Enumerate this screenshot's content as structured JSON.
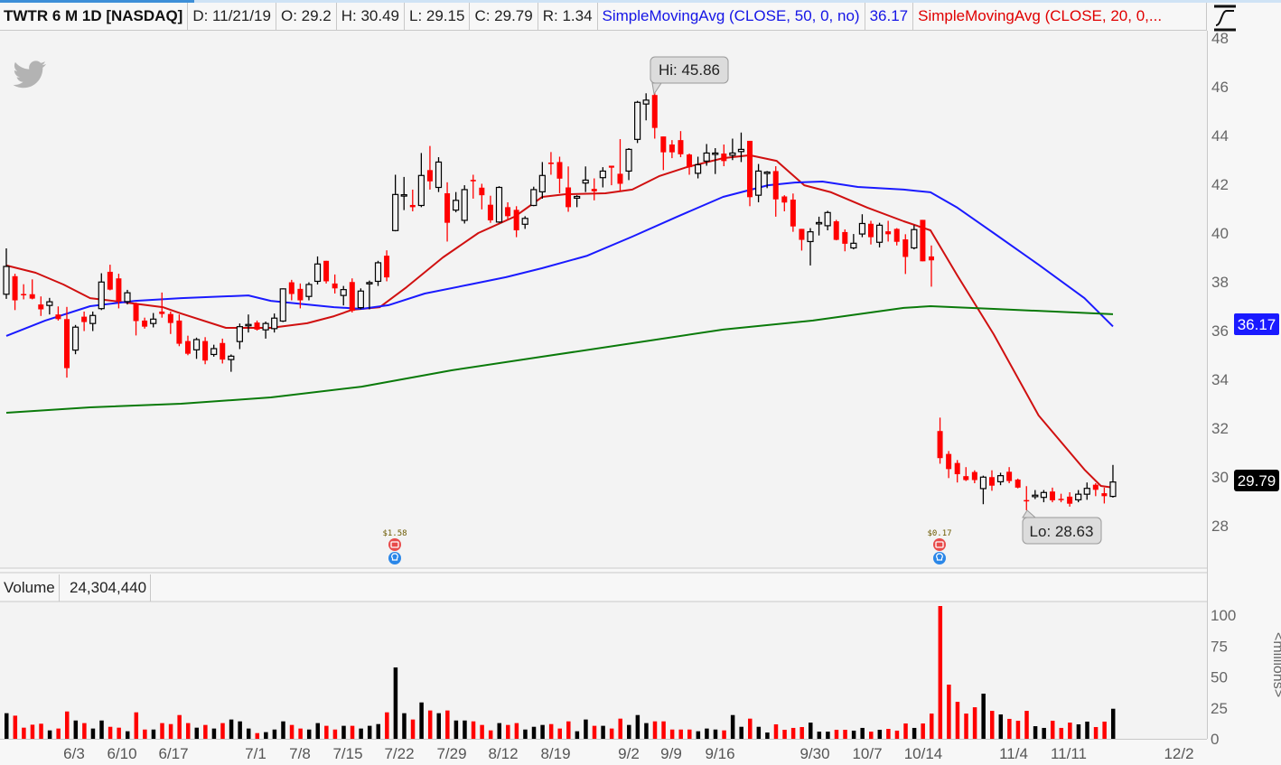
{
  "header": {
    "symbol": "TWTR 6 M 1D [NASDAQ]",
    "date": "D: 11/21/19",
    "open": "O: 29.2",
    "high": "H: 30.49",
    "low": "L: 29.15",
    "close": "C: 29.79",
    "range": "R: 1.34",
    "sma50_label": "SimpleMovingAvg (CLOSE, 50, 0, no)",
    "sma50_value": "36.17",
    "sma20_label": "SimpleMovingAvg (CLOSE, 20, 0,..."
  },
  "volume_pane": {
    "label": "Volume",
    "value": "24,304,440",
    "axis_label": "<millions>"
  },
  "annotations": {
    "high": "Hi: 45.86",
    "low": "Lo: 28.63",
    "dividends": [
      "$1.58",
      "$0.17"
    ]
  },
  "price_labels": {
    "sma50": "36.17",
    "last": "29.79"
  },
  "colors": {
    "up": "#000000",
    "down": "#ff0000",
    "sma20": "#d01010",
    "sma50": "#1a1aff",
    "sma200": "#0a7a0a",
    "background": "#f3f3f3",
    "logo": "#b3b3b3"
  },
  "icons": {
    "logo": "twitter-bird-icon",
    "dividend": "phone-icon",
    "earnings": "lightbulb-icon",
    "scale": "auto-scale-icon"
  },
  "chart_data": {
    "type": "candlestick",
    "symbol": "TWTR",
    "period": "6 M",
    "interval": "1D",
    "ylim": [
      27,
      48.3
    ],
    "y_ticks": [
      "48",
      "46",
      "44",
      "42",
      "40",
      "38",
      "36",
      "34",
      "32",
      "30",
      "28"
    ],
    "x_ticks": [
      "6/3",
      "6/10",
      "6/17",
      "7/1",
      "7/8",
      "7/15",
      "7/22",
      "7/29",
      "8/12",
      "8/19",
      "9/2",
      "9/9",
      "9/16",
      "9/30",
      "10/7",
      "10/14",
      "11/4",
      "11/11",
      "12/2"
    ],
    "volume_ticks": [
      "100",
      "75",
      "50",
      "25",
      "0"
    ],
    "volume_ylim": [
      0,
      110
    ],
    "grid": false,
    "ohlc": [
      [
        37.49,
        39.37,
        37.3,
        38.63
      ],
      [
        38.23,
        38.33,
        36.84,
        37.24
      ],
      [
        37.5,
        37.9,
        37.28,
        37.47
      ],
      [
        37.49,
        38.1,
        37.28,
        37.31
      ],
      [
        37.07,
        37.4,
        36.6,
        36.87
      ],
      [
        37.03,
        37.34,
        36.66,
        37.18
      ],
      [
        36.66,
        36.99,
        36.41,
        36.47
      ],
      [
        36.47,
        36.97,
        34.07,
        34.46
      ],
      [
        35.2,
        36.23,
        35.03,
        36.14
      ],
      [
        36.57,
        36.78,
        35.98,
        36.35
      ],
      [
        36.29,
        36.78,
        35.98,
        36.62
      ],
      [
        36.9,
        38.35,
        36.84,
        37.99
      ],
      [
        38.41,
        38.7,
        37.65,
        37.68
      ],
      [
        38.14,
        38.33,
        36.91,
        37.21
      ],
      [
        37.19,
        37.67,
        37.07,
        37.55
      ],
      [
        37.09,
        37.15,
        35.8,
        36.39
      ],
      [
        36.41,
        36.53,
        36.08,
        36.16
      ],
      [
        36.29,
        36.72,
        36.13,
        36.47
      ],
      [
        36.78,
        37.56,
        36.53,
        36.68
      ],
      [
        36.68,
        36.78,
        35.86,
        36.31
      ],
      [
        36.41,
        36.66,
        35.36,
        35.46
      ],
      [
        35.57,
        35.79,
        34.99,
        35.05
      ],
      [
        35.21,
        35.71,
        34.84,
        35.63
      ],
      [
        35.57,
        35.73,
        34.62,
        34.77
      ],
      [
        35.02,
        35.42,
        34.93,
        35.26
      ],
      [
        35.49,
        35.67,
        34.65,
        34.81
      ],
      [
        34.81,
        35.02,
        34.31,
        34.95
      ],
      [
        35.55,
        36.29,
        35.24,
        36.16
      ],
      [
        36.23,
        36.66,
        35.92,
        36.25
      ],
      [
        36.33,
        36.41,
        36.0,
        36.04
      ],
      [
        36.03,
        36.37,
        35.67,
        36.29
      ],
      [
        36.08,
        36.7,
        35.92,
        36.51
      ],
      [
        36.39,
        37.73,
        36.35,
        37.71
      ],
      [
        37.98,
        38.08,
        37.24,
        37.5
      ],
      [
        37.71,
        37.93,
        36.91,
        37.24
      ],
      [
        37.4,
        37.98,
        37.24,
        37.89
      ],
      [
        38.02,
        39.04,
        37.89,
        38.73
      ],
      [
        38.86,
        38.86,
        37.93,
        38.02
      ],
      [
        37.93,
        38.3,
        37.52,
        37.73
      ],
      [
        37.44,
        37.83,
        37.03,
        37.68
      ],
      [
        37.99,
        38.14,
        36.74,
        36.81
      ],
      [
        36.94,
        37.73,
        36.87,
        37.62
      ],
      [
        37.95,
        38.05,
        36.87,
        37.97
      ],
      [
        38.02,
        38.86,
        37.83,
        38.78
      ],
      [
        39.07,
        39.29,
        38.02,
        38.18
      ],
      [
        40.1,
        42.39,
        40.07,
        41.58
      ],
      [
        41.55,
        42.3,
        40.94,
        41.57
      ],
      [
        41.15,
        41.78,
        40.89,
        41.06
      ],
      [
        41.13,
        43.28,
        41.06,
        42.36
      ],
      [
        42.58,
        43.57,
        41.78,
        42.12
      ],
      [
        41.87,
        43.11,
        41.68,
        42.91
      ],
      [
        41.63,
        42.08,
        39.65,
        40.42
      ],
      [
        40.94,
        41.68,
        40.85,
        41.34
      ],
      [
        40.52,
        41.96,
        40.39,
        41.78
      ],
      [
        42.18,
        42.39,
        41.41,
        42.12
      ],
      [
        41.86,
        42.02,
        40.97,
        41.55
      ],
      [
        41.16,
        41.53,
        40.42,
        40.52
      ],
      [
        40.45,
        41.92,
        40.42,
        41.87
      ],
      [
        41.06,
        41.26,
        40.52,
        40.69
      ],
      [
        40.95,
        41.1,
        39.83,
        40.11
      ],
      [
        40.36,
        40.69,
        40.17,
        40.6
      ],
      [
        41.13,
        41.9,
        41.1,
        41.78
      ],
      [
        41.69,
        42.91,
        41.41,
        42.36
      ],
      [
        42.89,
        43.32,
        42.39,
        42.83
      ],
      [
        42.91,
        43.13,
        41.63,
        42.23
      ],
      [
        41.87,
        42.73,
        40.87,
        41.06
      ],
      [
        41.43,
        41.55,
        41.06,
        41.5
      ],
      [
        42.05,
        42.73,
        41.68,
        42.17
      ],
      [
        41.81,
        42.24,
        41.34,
        41.71
      ],
      [
        42.27,
        42.7,
        41.87,
        42.54
      ],
      [
        42.76,
        42.76,
        41.96,
        42.68
      ],
      [
        42.43,
        43.85,
        41.71,
        42.02
      ],
      [
        42.54,
        43.48,
        42.17,
        43.43
      ],
      [
        43.84,
        45.42,
        43.69,
        45.36
      ],
      [
        45.29,
        45.73,
        44.62,
        45.45
      ],
      [
        45.66,
        45.86,
        43.87,
        44.31
      ],
      [
        43.96,
        43.96,
        42.58,
        43.31
      ],
      [
        43.63,
        43.81,
        43.07,
        43.31
      ],
      [
        43.81,
        44.18,
        43.11,
        43.23
      ],
      [
        43.22,
        43.26,
        42.39,
        42.7
      ],
      [
        42.45,
        43.13,
        42.24,
        42.8
      ],
      [
        42.95,
        43.65,
        42.76,
        43.28
      ],
      [
        43.23,
        43.48,
        42.42,
        43.28
      ],
      [
        43.26,
        43.63,
        42.74,
        42.95
      ],
      [
        43.19,
        43.87,
        42.99,
        43.28
      ],
      [
        43.34,
        44.12,
        42.91,
        43.43
      ],
      [
        43.78,
        43.78,
        41.1,
        41.47
      ],
      [
        41.55,
        42.83,
        41.26,
        42.54
      ],
      [
        42.44,
        42.54,
        41.84,
        42.5
      ],
      [
        42.54,
        42.74,
        40.67,
        41.38
      ],
      [
        41.5,
        41.55,
        40.89,
        41.25
      ],
      [
        41.37,
        41.62,
        40.05,
        40.27
      ],
      [
        40.17,
        40.17,
        39.28,
        39.72
      ],
      [
        39.65,
        40.2,
        38.67,
        40.05
      ],
      [
        40.4,
        40.67,
        39.9,
        40.43
      ],
      [
        40.3,
        40.91,
        40.11,
        40.84
      ],
      [
        40.48,
        40.54,
        39.7,
        39.72
      ],
      [
        40.04,
        40.15,
        39.25,
        39.56
      ],
      [
        39.39,
        39.96,
        39.33,
        39.58
      ],
      [
        39.96,
        40.77,
        39.83,
        40.39
      ],
      [
        40.38,
        40.5,
        39.53,
        39.83
      ],
      [
        39.62,
        40.42,
        39.41,
        40.32
      ],
      [
        40.07,
        40.5,
        39.65,
        39.95
      ],
      [
        40.17,
        40.2,
        39.49,
        39.64
      ],
      [
        39.74,
        39.95,
        38.32,
        39.02
      ],
      [
        39.39,
        40.32,
        39.33,
        40.14
      ],
      [
        40.54,
        40.54,
        38.84,
        38.84
      ],
      [
        39.04,
        39.49,
        37.8,
        38.88
      ],
      [
        31.88,
        32.43,
        30.54,
        30.77
      ],
      [
        30.94,
        31.06,
        29.95,
        30.32
      ],
      [
        30.57,
        30.69,
        29.77,
        30.11
      ],
      [
        30.03,
        30.4,
        29.83,
        29.87
      ],
      [
        30.2,
        30.27,
        29.74,
        29.87
      ],
      [
        29.52,
        30.05,
        28.88,
        29.99
      ],
      [
        29.99,
        30.27,
        29.43,
        29.64
      ],
      [
        29.8,
        30.17,
        29.66,
        30.05
      ],
      [
        30.21,
        30.4,
        29.74,
        29.83
      ],
      [
        29.89,
        29.93,
        29.53,
        29.56
      ],
      [
        29.05,
        29.62,
        28.63,
        29.03
      ],
      [
        29.19,
        29.46,
        29.09,
        29.25
      ],
      [
        29.16,
        29.46,
        28.96,
        29.36
      ],
      [
        29.4,
        29.56,
        28.96,
        29.04
      ],
      [
        29.1,
        29.31,
        28.96,
        29.08
      ],
      [
        29.19,
        29.37,
        28.78,
        28.9
      ],
      [
        29.06,
        29.46,
        28.96,
        29.29
      ],
      [
        29.29,
        29.77,
        29.06,
        29.53
      ],
      [
        29.68,
        29.74,
        29.21,
        29.47
      ],
      [
        29.33,
        29.56,
        28.91,
        29.21
      ],
      [
        29.2,
        30.49,
        29.15,
        29.79
      ]
    ],
    "volume_millions": [
      20.7,
      18.7,
      9.0,
      11.4,
      12.2,
      6.8,
      8.3,
      22.1,
      14.8,
      12.7,
      8.3,
      14.8,
      9.7,
      9.0,
      6.1,
      21.4,
      7.5,
      7.5,
      12.7,
      11.9,
      19.2,
      12.7,
      9.0,
      11.2,
      8.3,
      12.7,
      15.6,
      14.1,
      8.3,
      4.6,
      5.4,
      7.5,
      14.1,
      11.2,
      8.3,
      7.5,
      12.7,
      10.5,
      7.5,
      10.5,
      10.5,
      8.3,
      10.5,
      11.9,
      21.4,
      57.7,
      20.7,
      15.6,
      29.4,
      22.9,
      20.7,
      22.9,
      14.8,
      14.8,
      14.1,
      11.2,
      6.8,
      12.7,
      11.2,
      12.7,
      7.5,
      9.7,
      11.2,
      11.9,
      8.3,
      14.1,
      6.1,
      15.6,
      10.5,
      10.5,
      8.3,
      16.3,
      11.2,
      19.2,
      12.7,
      14.1,
      14.1,
      7.5,
      7.5,
      7.5,
      6.1,
      8.3,
      7.5,
      6.8,
      19.2,
      9.7,
      16.3,
      9.7,
      5.1,
      11.7,
      7.3,
      8.8,
      9.5,
      13.1,
      5.8,
      5.8,
      7.3,
      7.3,
      6.6,
      8.8,
      5.8,
      7.3,
      8.0,
      6.6,
      12.4,
      8.8,
      12.4,
      20.4,
      107.3,
      43.8,
      29.9,
      20.4,
      25.5,
      36.5,
      22.6,
      19.7,
      16.1,
      14.6,
      22.6,
      10.2,
      8.8,
      14.6,
      8.8,
      13.1,
      11.7,
      13.9,
      9.5,
      13.9,
      24.3
    ],
    "series": [
      {
        "name": "SimpleMovingAvg (CLOSE, 20, 0,...",
        "color": "#d01010",
        "points": [
          [
            1,
            38.67
          ],
          [
            4.4,
            38.37
          ],
          [
            7.6,
            37.89
          ],
          [
            10.7,
            37.33
          ],
          [
            14.9,
            37.15
          ],
          [
            19.1,
            36.96
          ],
          [
            21.2,
            36.7
          ],
          [
            26.4,
            36.11
          ],
          [
            31.6,
            36.11
          ],
          [
            35.8,
            36.3
          ],
          [
            38.9,
            36.59
          ],
          [
            41,
            36.85
          ],
          [
            44.2,
            36.96
          ],
          [
            47.3,
            37.78
          ],
          [
            51.5,
            39.0
          ],
          [
            55.6,
            40.0
          ],
          [
            59.8,
            40.67
          ],
          [
            63,
            41.48
          ],
          [
            65.6,
            41.59
          ],
          [
            70.3,
            41.63
          ],
          [
            73.4,
            41.78
          ],
          [
            76.5,
            42.33
          ],
          [
            79.7,
            42.7
          ],
          [
            83.9,
            43.07
          ],
          [
            87,
            43.19
          ],
          [
            90.1,
            42.96
          ],
          [
            93.3,
            41.96
          ],
          [
            96.4,
            41.67
          ],
          [
            100.6,
            41.04
          ],
          [
            104.8,
            40.48
          ],
          [
            107.9,
            40.11
          ],
          [
            111,
            38.26
          ],
          [
            115.2,
            35.85
          ],
          [
            120.4,
            32.52
          ],
          [
            125.7,
            30.3
          ],
          [
            127.6,
            29.63
          ],
          [
            129,
            29.56
          ]
        ]
      },
      {
        "name": "SimpleMovingAvg (CLOSE, 50, 0, no)",
        "color": "#1a1aff",
        "points": [
          [
            1,
            35.78
          ],
          [
            5.5,
            36.41
          ],
          [
            10.7,
            37.0
          ],
          [
            15.9,
            37.22
          ],
          [
            21.2,
            37.33
          ],
          [
            29,
            37.44
          ],
          [
            31.6,
            37.22
          ],
          [
            38.9,
            36.96
          ],
          [
            42.1,
            36.89
          ],
          [
            45.2,
            37.04
          ],
          [
            49.4,
            37.52
          ],
          [
            54.6,
            37.89
          ],
          [
            58.8,
            38.19
          ],
          [
            63,
            38.56
          ],
          [
            68.2,
            39.07
          ],
          [
            73.4,
            39.85
          ],
          [
            78.6,
            40.67
          ],
          [
            83.9,
            41.48
          ],
          [
            89.1,
            41.96
          ],
          [
            92.2,
            42.07
          ],
          [
            95.4,
            42.11
          ],
          [
            99.5,
            41.89
          ],
          [
            104.8,
            41.78
          ],
          [
            107.9,
            41.67
          ],
          [
            111,
            41.04
          ],
          [
            115.2,
            40.0
          ],
          [
            120.4,
            38.7
          ],
          [
            125.7,
            37.33
          ],
          [
            129,
            36.17
          ]
        ]
      },
      {
        "color": "#0a7a0a",
        "points": [
          [
            1,
            32.63
          ],
          [
            10.7,
            32.85
          ],
          [
            21.2,
            33.0
          ],
          [
            31.6,
            33.26
          ],
          [
            42.1,
            33.7
          ],
          [
            52.5,
            34.37
          ],
          [
            63,
            34.93
          ],
          [
            73.4,
            35.48
          ],
          [
            83.9,
            36.04
          ],
          [
            94.3,
            36.41
          ],
          [
            104.8,
            36.93
          ],
          [
            107.9,
            37.0
          ],
          [
            115.2,
            36.89
          ],
          [
            129,
            36.67
          ]
        ]
      }
    ]
  }
}
